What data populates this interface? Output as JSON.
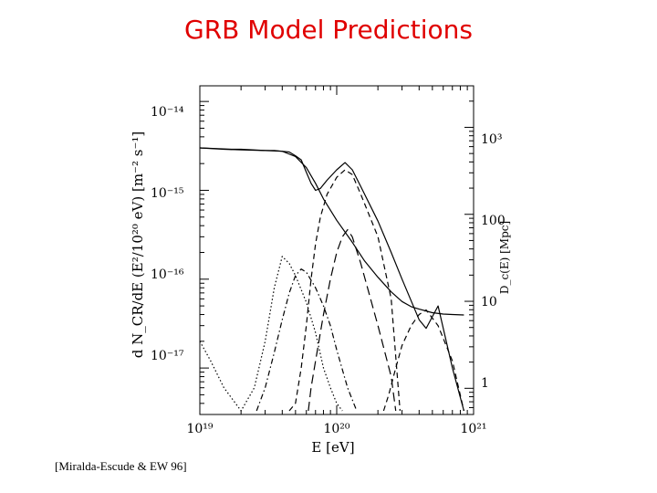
{
  "slide": {
    "title": "GRB Model Predictions",
    "citation": "[Miralda-Escude & EW 96]"
  },
  "chart_data": {
    "type": "line",
    "xscale": "log",
    "yscale": "log",
    "xlabel": "E [eV]",
    "ylabel": "d N_CR/dE (E²/10²⁰ eV) [m⁻² s⁻¹]",
    "y2label": "D_c(E) [Mpc]",
    "xlim": [
      1e+19,
      1e+21
    ],
    "ylim": [
      3e-18,
      1.5e-14
    ],
    "y2lim": [
      0.5,
      3000
    ],
    "x_ticks": [
      "10¹⁹",
      "10²⁰",
      "10²¹"
    ],
    "y_ticks": [
      "10⁻¹⁴",
      "10⁻¹⁵",
      "10⁻¹⁶",
      "10⁻¹⁷"
    ],
    "y2_ticks": [
      "10³",
      "100",
      "10",
      "1"
    ],
    "series": [
      {
        "style": "solid",
        "x": [
          1e+19,
          1.3e+19,
          1.7e+19,
          2e+19,
          2.5e+19,
          3e+19,
          3.5e+19,
          4e+19,
          4.5e+19,
          5e+19,
          5.5e+19,
          6e+19,
          6.5e+19,
          7e+19,
          7.6e+19,
          8.5e+19,
          1e+20,
          1.15e+20,
          1.3e+20,
          1.5e+20,
          2e+20,
          2.5e+20,
          3e+20,
          4e+20,
          4.5e+20,
          5.5e+20,
          7e+20,
          8.5e+20
        ],
        "y": [
          3e-15,
          2.95e-15,
          2.9e-15,
          2.9e-15,
          2.85e-15,
          2.8e-15,
          2.8e-15,
          2.75e-15,
          2.7e-15,
          2.45e-15,
          2.2e-15,
          1.6e-15,
          1.2e-15,
          1e-15,
          1.05e-15,
          1.3e-15,
          1.7e-15,
          2.05e-15,
          1.7e-15,
          1.1e-15,
          4.5e-16,
          2e-16,
          1e-16,
          3.5e-17,
          2.8e-17,
          5e-17,
          1e-17,
          3.3e-18
        ]
      },
      {
        "style": "dashed",
        "x": [
          4.5e+19,
          5e+19,
          5.5e+19,
          6e+19,
          6.5e+19,
          7e+19,
          7.6e+19,
          8.5e+19,
          1e+20,
          1.15e+20,
          1.3e+20,
          1.5e+20,
          2e+20,
          2.5e+20,
          2.9e+20
        ],
        "y": [
          3.3e-18,
          4e-18,
          1e-17,
          3e-17,
          1e-16,
          2.5e-16,
          5e-16,
          9e-16,
          1.4e-15,
          1.7e-15,
          1.5e-15,
          9e-16,
          3e-16,
          6e-17,
          3.3e-18
        ]
      },
      {
        "style": "long-dash",
        "x": [
          6.2e+19,
          6.5e+19,
          7e+19,
          8e+19,
          9e+19,
          1e+20,
          1.1e+20,
          1.2e+20,
          1.3e+20,
          1.5e+20,
          2e+20,
          2.5e+20,
          2.7e+20
        ],
        "y": [
          3.3e-18,
          6e-18,
          1.2e-17,
          4e-17,
          1e-16,
          2e-16,
          3e-16,
          3.6e-16,
          3e-16,
          1.5e-16,
          3e-17,
          8e-18,
          3.3e-18
        ]
      },
      {
        "style": "dotted",
        "x": [
          1e+19,
          1.2e+19,
          1.5e+19,
          2e+19,
          2.5e+19,
          3e+19,
          3.5e+19,
          4e+19,
          4.5e+19,
          5e+19,
          6e+19,
          7e+19,
          8e+19,
          9e+19,
          1e+20,
          1.1e+20
        ],
        "y": [
          2e-17,
          1.2e-17,
          6e-18,
          3.3e-18,
          6e-18,
          2e-17,
          8e-17,
          1.8e-16,
          1.5e-16,
          1.1e-16,
          5.5e-17,
          2.5e-17,
          1e-17,
          6e-18,
          4e-18,
          3.3e-18
        ]
      },
      {
        "style": "dash-dot",
        "x": [
          2.6e+19,
          3e+19,
          3.5e+19,
          4e+19,
          4.5e+19,
          5e+19,
          5.5e+19,
          6e+19,
          7e+19,
          8e+19,
          9e+19,
          1e+20,
          1.2e+20,
          1.4e+20
        ],
        "y": [
          3.3e-18,
          6e-18,
          1.5e-17,
          3.5e-17,
          7e-17,
          1.1e-16,
          1.3e-16,
          1.2e-16,
          8e-17,
          5e-17,
          3e-17,
          1.6e-17,
          6e-18,
          3.3e-18
        ]
      },
      {
        "style": "dashed",
        "x": [
          2.2e+20,
          2.4e+20,
          2.7e+20,
          3e+20,
          3.5e+20,
          4e+20,
          4.5e+20,
          5.5e+20,
          7e+20,
          8.5e+20
        ],
        "y": [
          3.3e-18,
          5e-18,
          1e-17,
          1.8e-17,
          3e-17,
          4e-17,
          4.5e-17,
          3e-17,
          1.2e-17,
          3.3e-18
        ]
      },
      {
        "style": "solid",
        "x": [
          1e+19,
          1.5e+19,
          2e+19,
          3e+19,
          4e+19,
          5e+19,
          6e+19,
          7e+19,
          8e+19,
          1e+20,
          1.3e+20,
          1.6e+20,
          2e+20,
          2.5e+20,
          3e+20,
          3.5e+20,
          4e+20,
          5e+20,
          6e+20,
          7e+20,
          8.5e+20
        ],
        "y": [
          3e-15,
          2.9e-15,
          2.85e-15,
          2.8e-15,
          2.75e-15,
          2.4e-15,
          1.8e-15,
          1.2e-15,
          8e-16,
          4.6e-16,
          2.6e-16,
          1.6e-16,
          1.05e-16,
          7.2e-17,
          5.6e-17,
          4.9e-17,
          4.6e-17,
          4.2e-17,
          4.05e-17,
          4e-17,
          3.95e-17
        ]
      }
    ]
  }
}
